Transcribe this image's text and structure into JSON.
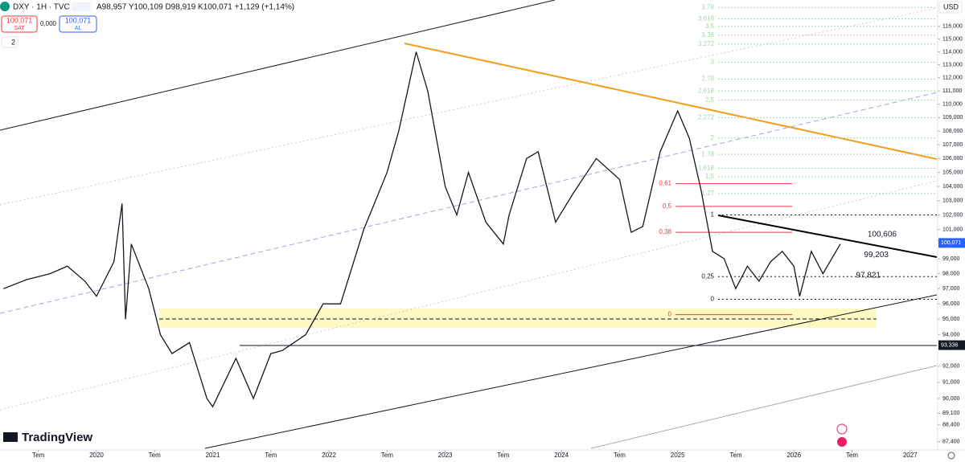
{
  "header": {
    "symbol": "DXY · 1H · TVC",
    "ohlc": "A98,957 Y100,109 D98,919 K100,071 +1,129 (+1,14%)",
    "sell_price": "100,071",
    "sell_label": "SAT",
    "spread": "0,000",
    "buy_price": "100,071",
    "buy_label": "AL",
    "indicator_count": "2",
    "currency": "USD"
  },
  "brand": "TradingView",
  "chart_data": {
    "type": "line",
    "log": true,
    "color": "#131722",
    "x": [
      2019.2,
      2019.4,
      2019.6,
      2019.75,
      2019.9,
      2020.0,
      2020.15,
      2020.22,
      2020.25,
      2020.3,
      2020.45,
      2020.55,
      2020.65,
      2020.8,
      2020.95,
      2021.0,
      2021.2,
      2021.35,
      2021.5,
      2021.6,
      2021.8,
      2021.95,
      2022.1,
      2022.3,
      2022.5,
      2022.6,
      2022.75,
      2022.85,
      2023.0,
      2023.1,
      2023.2,
      2023.35,
      2023.5,
      2023.55,
      2023.7,
      2023.8,
      2023.95,
      2024.1,
      2024.3,
      2024.5,
      2024.6,
      2024.7,
      2024.85,
      2025.0,
      2025.1,
      2025.2,
      2025.3,
      2025.4,
      2025.5,
      2025.6,
      2025.7,
      2025.8,
      2025.9,
      2026.0,
      2026.05,
      2026.15,
      2026.25,
      2026.4
    ],
    "values": [
      97.0,
      97.6,
      98.0,
      98.5,
      97.5,
      96.5,
      98.8,
      102.8,
      95.0,
      100.0,
      97.0,
      94.0,
      92.8,
      93.5,
      90.0,
      89.5,
      92.5,
      90.0,
      92.8,
      93.0,
      94.0,
      96.0,
      96.0,
      101.0,
      105.0,
      108.0,
      114.0,
      111.0,
      104.0,
      102.0,
      105.0,
      101.5,
      100.0,
      102.0,
      106.0,
      106.5,
      101.5,
      103.5,
      106.0,
      104.5,
      100.8,
      101.2,
      106.5,
      109.5,
      107.5,
      103.8,
      99.5,
      99.0,
      97.0,
      98.5,
      97.5,
      98.8,
      99.5,
      98.5,
      96.5,
      99.5,
      98.0,
      100.0
    ],
    "xlim": [
      2019.17,
      2027.23
    ],
    "ylim": [
      86.9,
      118.1
    ],
    "xticks": [
      {
        "value": 2019.5,
        "label": "Tem"
      },
      2020,
      {
        "value": 2020.5,
        "label": "Tem"
      },
      2021,
      {
        "value": 2021.5,
        "label": "Tem"
      },
      2022,
      {
        "value": 2022.5,
        "label": "Tem"
      },
      2023,
      {
        "value": 2023.5,
        "label": "Tem"
      },
      2024,
      {
        "value": 2024.5,
        "label": "Tem"
      },
      2025,
      {
        "value": 2025.5,
        "label": "Tem"
      },
      2026,
      {
        "value": 2026.5,
        "label": "Tem"
      },
      2027
    ],
    "yticks": [
      {
        "value": 116,
        "label": "116,000"
      },
      {
        "value": 115,
        "label": "115,000"
      },
      {
        "value": 114,
        "label": "114,000"
      },
      {
        "value": 113,
        "label": "113,000"
      },
      {
        "value": 112,
        "label": "112,000"
      },
      {
        "value": 111,
        "label": "111,000"
      },
      {
        "value": 110,
        "label": "110,000"
      },
      {
        "value": 109,
        "label": "109,000"
      },
      {
        "value": 108,
        "label": "108,000"
      },
      {
        "value": 107,
        "label": "107,000"
      },
      {
        "value": 106,
        "label": "106,000"
      },
      {
        "value": 105,
        "label": "105,000"
      },
      {
        "value": 104,
        "label": "104,000"
      },
      {
        "value": 103,
        "label": "103,000"
      },
      {
        "value": 102,
        "label": "102,000"
      },
      {
        "value": 101,
        "label": "101,000"
      },
      {
        "value": 99,
        "label": "99,000"
      },
      {
        "value": 98,
        "label": "98,000"
      },
      {
        "value": 97,
        "label": "97,000"
      },
      {
        "value": 96,
        "label": "96,000"
      },
      {
        "value": 95,
        "label": "95,000"
      },
      {
        "value": 94,
        "label": "94,000"
      },
      {
        "value": 92,
        "label": "92,000"
      },
      {
        "value": 91,
        "label": "91,000"
      },
      {
        "value": 90,
        "label": "90,000"
      },
      {
        "value": 89.1,
        "label": "89,100"
      },
      {
        "value": 88.4,
        "label": "88,400"
      },
      {
        "value": 87.4,
        "label": "87,400"
      }
    ],
    "price_badges": [
      {
        "value": 100.071,
        "label": "100,071",
        "color": "#2962ff"
      },
      {
        "value": 93.336,
        "label": "93,336",
        "color": "#131722"
      }
    ],
    "annotations": [
      {
        "value": 100.606,
        "label": "100,606"
      },
      {
        "value": 99.203,
        "label": "99,203"
      },
      {
        "value": 97.821,
        "label": "97,821"
      }
    ],
    "fib_red": [
      {
        "value": 104.2,
        "label": "0,61"
      },
      {
        "value": 102.6,
        "label": "0,5"
      },
      {
        "value": 100.8,
        "label": "0,38"
      },
      {
        "value": 95.3,
        "label": "0"
      }
    ],
    "fib_black": [
      {
        "value": 102.0,
        "label": "1"
      },
      {
        "value": 97.8,
        "label": "0,25"
      },
      {
        "value": 96.3,
        "label": "0"
      }
    ],
    "fib_green": [
      {
        "value": 117.5,
        "label": "3,78"
      },
      {
        "value": 116.6,
        "label": "3,618"
      },
      {
        "value": 116.0,
        "label": "3,5"
      },
      {
        "value": 115.3,
        "label": "3,38"
      },
      {
        "value": 114.6,
        "label": "3,272"
      },
      {
        "value": 113.2,
        "label": "3"
      },
      {
        "value": 111.9,
        "label": "2,78"
      },
      {
        "value": 111.0,
        "label": "2,618"
      },
      {
        "value": 110.3,
        "label": "2,5"
      },
      {
        "value": 109.0,
        "label": "2,272"
      },
      {
        "value": 107.5,
        "label": "2"
      },
      {
        "value": 106.3,
        "label": "1,78"
      },
      {
        "value": 105.3,
        "label": "1,618"
      },
      {
        "value": 104.7,
        "label": "1,5"
      },
      {
        "value": 103.5,
        "label": "1,27"
      }
    ]
  }
}
